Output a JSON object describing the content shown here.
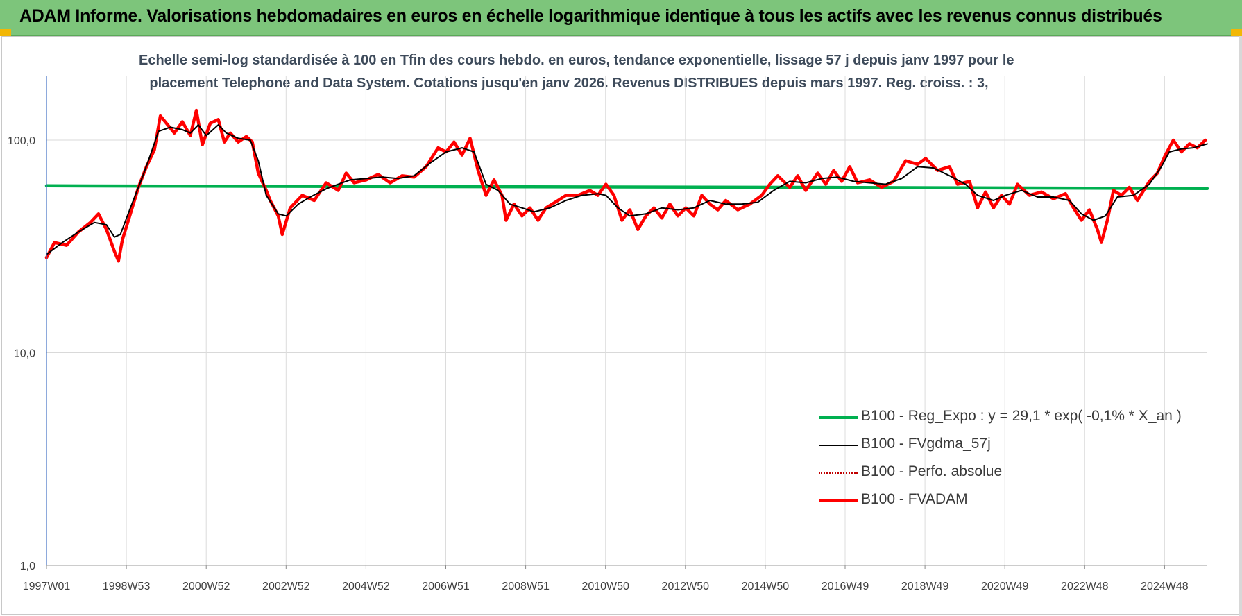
{
  "banner": {
    "title": "ADAM Informe. Valorisations hebdomadaires en euros en échelle logarithmique identique à tous les actifs avec les revenus connus distribués",
    "color": "#7dc57b"
  },
  "chart_data": {
    "type": "line",
    "title_line1": "Echelle semi-log standardisée à 100 en Tfin des cours hebdo. en euros, tendance exponentielle, lissage 57 j depuis janv 1997 pour le",
    "title_line2": "placement Telephone and Data System.  Cotations jusqu'en janv 2026. Revenus DISTRIBUES depuis mars 1997. Reg. croiss. : 3,",
    "yscale": "log",
    "ylim": [
      1,
      200
    ],
    "y_ticks": [
      "1,0",
      "10,0",
      "100,0"
    ],
    "x_ticks": [
      "1997W01",
      "1998W53",
      "2000W52",
      "2002W52",
      "2004W52",
      "2006W51",
      "2008W51",
      "2010W50",
      "2012W50",
      "2014W50",
      "2016W49",
      "2018W49",
      "2020W49",
      "2022W48",
      "2024W48"
    ],
    "x_range_years": [
      1997.0,
      2026.05
    ],
    "grid": "vertical",
    "legend_position": "bottom-right",
    "series": [
      {
        "name": "B100 - Reg_Expo : y = 29,1 * exp( -0,1% *  X_an )",
        "color": "#00b050",
        "style": "solid-thick",
        "points": [
          [
            1997.0,
            61.0
          ],
          [
            2000.0,
            60.8
          ],
          [
            2016.0,
            60.0
          ],
          [
            2026.05,
            59.2
          ]
        ]
      },
      {
        "name": "B100 - FVgdma_57j",
        "color": "#000000",
        "style": "solid",
        "points": [
          [
            1997.0,
            29
          ],
          [
            1997.4,
            33
          ],
          [
            1997.8,
            37
          ],
          [
            1998.2,
            41
          ],
          [
            1998.5,
            40
          ],
          [
            1998.7,
            35
          ],
          [
            1998.85,
            36
          ],
          [
            1999.1,
            48
          ],
          [
            1999.4,
            67
          ],
          [
            1999.6,
            85
          ],
          [
            1999.8,
            110
          ],
          [
            2000.1,
            115
          ],
          [
            2000.4,
            112
          ],
          [
            2000.6,
            108
          ],
          [
            2000.8,
            118
          ],
          [
            2001.0,
            105
          ],
          [
            2001.3,
            118
          ],
          [
            2001.5,
            108
          ],
          [
            2001.8,
            102
          ],
          [
            2002.1,
            100
          ],
          [
            2002.3,
            80
          ],
          [
            2002.5,
            55
          ],
          [
            2002.8,
            45
          ],
          [
            2003.0,
            44
          ],
          [
            2003.3,
            50
          ],
          [
            2003.6,
            54
          ],
          [
            2004.0,
            59
          ],
          [
            2004.3,
            62
          ],
          [
            2004.6,
            65
          ],
          [
            2005.0,
            66
          ],
          [
            2005.4,
            67
          ],
          [
            2005.8,
            66
          ],
          [
            2006.2,
            68
          ],
          [
            2006.6,
            78
          ],
          [
            2007.0,
            88
          ],
          [
            2007.4,
            92
          ],
          [
            2007.7,
            88
          ],
          [
            2008.0,
            62
          ],
          [
            2008.3,
            58
          ],
          [
            2008.6,
            50
          ],
          [
            2008.9,
            48
          ],
          [
            2009.2,
            46
          ],
          [
            2009.6,
            48
          ],
          [
            2010.0,
            52
          ],
          [
            2010.4,
            55
          ],
          [
            2010.8,
            56
          ],
          [
            2011.0,
            55
          ],
          [
            2011.3,
            48
          ],
          [
            2011.6,
            44
          ],
          [
            2012.0,
            45
          ],
          [
            2012.4,
            48
          ],
          [
            2012.8,
            47
          ],
          [
            2013.2,
            48
          ],
          [
            2013.6,
            52
          ],
          [
            2014.0,
            50
          ],
          [
            2014.4,
            50
          ],
          [
            2014.8,
            51
          ],
          [
            2015.2,
            58
          ],
          [
            2015.6,
            64
          ],
          [
            2016.0,
            63
          ],
          [
            2016.4,
            66
          ],
          [
            2016.8,
            67
          ],
          [
            2017.2,
            64
          ],
          [
            2017.6,
            63
          ],
          [
            2018.0,
            62
          ],
          [
            2018.4,
            66
          ],
          [
            2018.8,
            75
          ],
          [
            2019.2,
            74
          ],
          [
            2019.6,
            68
          ],
          [
            2020.0,
            62
          ],
          [
            2020.3,
            55
          ],
          [
            2020.7,
            52
          ],
          [
            2021.0,
            55
          ],
          [
            2021.4,
            58
          ],
          [
            2021.8,
            54
          ],
          [
            2022.2,
            54
          ],
          [
            2022.6,
            52
          ],
          [
            2022.9,
            45
          ],
          [
            2023.2,
            42
          ],
          [
            2023.5,
            44
          ],
          [
            2023.8,
            54
          ],
          [
            2024.2,
            55
          ],
          [
            2024.6,
            62
          ],
          [
            2024.9,
            75
          ],
          [
            2025.1,
            88
          ],
          [
            2025.4,
            91
          ],
          [
            2025.7,
            92
          ],
          [
            2026.05,
            96
          ]
        ]
      },
      {
        "name": "B100 - Perfo. absolue",
        "color": "#c00000",
        "style": "dotted",
        "points": []
      },
      {
        "name": "B100 - FVADAM",
        "color": "#ff0000",
        "style": "solid-thick",
        "points": [
          [
            1997.0,
            28
          ],
          [
            1997.2,
            33
          ],
          [
            1997.5,
            32
          ],
          [
            1997.8,
            37
          ],
          [
            1998.1,
            41
          ],
          [
            1998.3,
            45
          ],
          [
            1998.5,
            38
          ],
          [
            1998.7,
            30
          ],
          [
            1998.8,
            27
          ],
          [
            1998.9,
            34
          ],
          [
            1999.1,
            45
          ],
          [
            1999.3,
            60
          ],
          [
            1999.5,
            75
          ],
          [
            1999.7,
            90
          ],
          [
            1999.85,
            130
          ],
          [
            2000.0,
            120
          ],
          [
            2000.2,
            108
          ],
          [
            2000.4,
            122
          ],
          [
            2000.6,
            105
          ],
          [
            2000.75,
            138
          ],
          [
            2000.9,
            95
          ],
          [
            2001.1,
            120
          ],
          [
            2001.3,
            125
          ],
          [
            2001.45,
            98
          ],
          [
            2001.6,
            108
          ],
          [
            2001.8,
            98
          ],
          [
            2002.0,
            104
          ],
          [
            2002.15,
            98
          ],
          [
            2002.3,
            70
          ],
          [
            2002.5,
            58
          ],
          [
            2002.6,
            52
          ],
          [
            2002.8,
            44
          ],
          [
            2002.9,
            36
          ],
          [
            2003.1,
            48
          ],
          [
            2003.4,
            55
          ],
          [
            2003.7,
            52
          ],
          [
            2004.0,
            63
          ],
          [
            2004.3,
            58
          ],
          [
            2004.5,
            70
          ],
          [
            2004.7,
            63
          ],
          [
            2005.0,
            65
          ],
          [
            2005.3,
            69
          ],
          [
            2005.6,
            63
          ],
          [
            2005.9,
            68
          ],
          [
            2006.2,
            67
          ],
          [
            2006.5,
            75
          ],
          [
            2006.8,
            92
          ],
          [
            2007.0,
            88
          ],
          [
            2007.2,
            98
          ],
          [
            2007.4,
            85
          ],
          [
            2007.6,
            102
          ],
          [
            2007.8,
            72
          ],
          [
            2008.0,
            55
          ],
          [
            2008.2,
            65
          ],
          [
            2008.4,
            55
          ],
          [
            2008.5,
            42
          ],
          [
            2008.7,
            50
          ],
          [
            2008.9,
            44
          ],
          [
            2009.1,
            48
          ],
          [
            2009.3,
            42
          ],
          [
            2009.5,
            48
          ],
          [
            2009.8,
            52
          ],
          [
            2010.0,
            55
          ],
          [
            2010.3,
            55
          ],
          [
            2010.6,
            58
          ],
          [
            2010.8,
            55
          ],
          [
            2011.0,
            62
          ],
          [
            2011.2,
            55
          ],
          [
            2011.4,
            42
          ],
          [
            2011.6,
            47
          ],
          [
            2011.8,
            38
          ],
          [
            2012.0,
            44
          ],
          [
            2012.2,
            48
          ],
          [
            2012.4,
            43
          ],
          [
            2012.6,
            50
          ],
          [
            2012.8,
            44
          ],
          [
            2013.0,
            48
          ],
          [
            2013.2,
            44
          ],
          [
            2013.4,
            55
          ],
          [
            2013.6,
            50
          ],
          [
            2013.8,
            47
          ],
          [
            2014.0,
            52
          ],
          [
            2014.3,
            47
          ],
          [
            2014.6,
            50
          ],
          [
            2014.9,
            55
          ],
          [
            2015.1,
            62
          ],
          [
            2015.3,
            68
          ],
          [
            2015.6,
            60
          ],
          [
            2015.8,
            68
          ],
          [
            2016.0,
            58
          ],
          [
            2016.3,
            70
          ],
          [
            2016.5,
            62
          ],
          [
            2016.7,
            72
          ],
          [
            2016.9,
            64
          ],
          [
            2017.1,
            75
          ],
          [
            2017.3,
            63
          ],
          [
            2017.6,
            65
          ],
          [
            2017.9,
            60
          ],
          [
            2018.2,
            64
          ],
          [
            2018.5,
            80
          ],
          [
            2018.8,
            77
          ],
          [
            2019.0,
            82
          ],
          [
            2019.3,
            72
          ],
          [
            2019.6,
            75
          ],
          [
            2019.8,
            62
          ],
          [
            2020.1,
            64
          ],
          [
            2020.3,
            48
          ],
          [
            2020.5,
            57
          ],
          [
            2020.7,
            48
          ],
          [
            2020.9,
            55
          ],
          [
            2021.1,
            50
          ],
          [
            2021.3,
            62
          ],
          [
            2021.6,
            55
          ],
          [
            2021.9,
            57
          ],
          [
            2022.2,
            53
          ],
          [
            2022.5,
            56
          ],
          [
            2022.7,
            48
          ],
          [
            2022.9,
            42
          ],
          [
            2023.1,
            47
          ],
          [
            2023.3,
            38
          ],
          [
            2023.4,
            33
          ],
          [
            2023.55,
            42
          ],
          [
            2023.7,
            58
          ],
          [
            2023.9,
            55
          ],
          [
            2024.1,
            60
          ],
          [
            2024.3,
            52
          ],
          [
            2024.6,
            64
          ],
          [
            2024.8,
            70
          ],
          [
            2025.0,
            85
          ],
          [
            2025.2,
            100
          ],
          [
            2025.4,
            88
          ],
          [
            2025.6,
            96
          ],
          [
            2025.8,
            92
          ],
          [
            2026.0,
            100
          ]
        ]
      }
    ]
  }
}
